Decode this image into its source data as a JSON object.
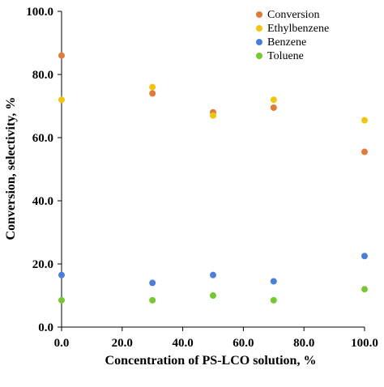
{
  "chart_data": {
    "type": "scatter",
    "xlabel": "Concentration of PS-LCO solution, %",
    "ylabel": "Conversion, selectivity, %",
    "xlim": [
      0,
      100
    ],
    "ylim": [
      0,
      100
    ],
    "x_ticks": [
      "0.0",
      "20.0",
      "40.0",
      "60.0",
      "80.0",
      "100.0"
    ],
    "y_ticks": [
      "0.0",
      "20.0",
      "40.0",
      "60.0",
      "80.0",
      "100.0"
    ],
    "grid": false,
    "legend_position": "top-right",
    "trendlines": "dashed",
    "x": [
      0,
      30,
      50,
      70,
      100
    ],
    "series": [
      {
        "name": "Conversion",
        "color": "#e07b39",
        "values": [
          86.0,
          74.0,
          68.0,
          69.5,
          55.5
        ],
        "trend": "linear"
      },
      {
        "name": "Ethylbenzene",
        "color": "#f2c40f",
        "values": [
          72.0,
          76.0,
          67.0,
          72.0,
          65.5
        ],
        "trend": "quadratic"
      },
      {
        "name": "Benzene",
        "color": "#4a7fd9",
        "values": [
          16.5,
          14.0,
          16.5,
          14.5,
          22.5
        ],
        "trend": "quadratic"
      },
      {
        "name": "Toluene",
        "color": "#76c832",
        "values": [
          8.5,
          8.5,
          10.0,
          8.5,
          12.0
        ],
        "trend": "quadratic"
      }
    ]
  }
}
